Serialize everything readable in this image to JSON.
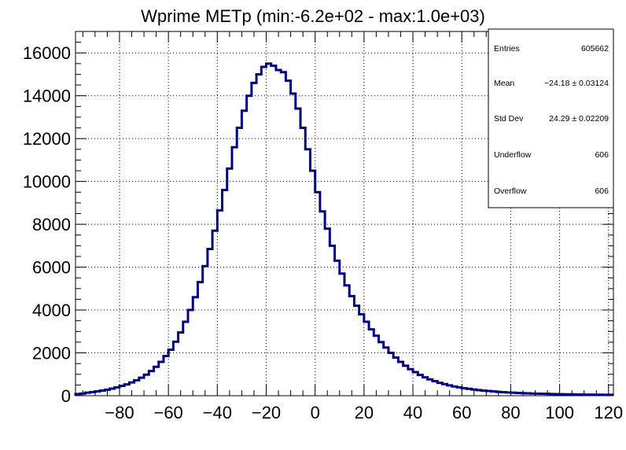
{
  "chart_data": {
    "type": "histogram-step",
    "title": "Wprime METp (min:-6.2e+02 - max:1.0e+03)",
    "xlabel": "",
    "ylabel": "",
    "xlim": [
      -98,
      122
    ],
    "ylim": [
      0,
      17000
    ],
    "x_ticks": [
      -80,
      -60,
      -40,
      -20,
      0,
      20,
      40,
      60,
      80,
      100,
      120
    ],
    "y_ticks": [
      0,
      2000,
      4000,
      6000,
      8000,
      10000,
      12000,
      14000,
      16000
    ],
    "grid": true,
    "line_color": "#00007f",
    "bin_width": 2,
    "x_start": -98,
    "values": [
      80,
      100,
      140,
      170,
      200,
      240,
      280,
      330,
      390,
      460,
      530,
      620,
      720,
      840,
      980,
      1150,
      1350,
      1580,
      1850,
      2150,
      2520,
      2950,
      3450,
      4000,
      4600,
      5300,
      6050,
      6850,
      7700,
      8650,
      9600,
      10600,
      11600,
      12500,
      13300,
      14000,
      14600,
      15000,
      15350,
      15500,
      15400,
      15200,
      15100,
      14700,
      14100,
      13400,
      12500,
      11500,
      10500,
      9500,
      8600,
      7800,
      7000,
      6300,
      5700,
      5150,
      4650,
      4200,
      3800,
      3450,
      3100,
      2800,
      2500,
      2250,
      2000,
      1780,
      1580,
      1400,
      1240,
      1100,
      970,
      860,
      760,
      680,
      600,
      540,
      480,
      430,
      390,
      350,
      320,
      290,
      260,
      240,
      220,
      200,
      180,
      165,
      150,
      140,
      130,
      120,
      110,
      100,
      95,
      90,
      85,
      80,
      75,
      70,
      65,
      62,
      58,
      55,
      52,
      50,
      47,
      45,
      43,
      40
    ]
  },
  "stats_box": {
    "entries_label": "Entries",
    "entries_value": "605662",
    "mean_label": "Mean",
    "mean_value": "−24.18 ± 0.03124",
    "stddev_label": "Std Dev",
    "stddev_value": "24.29 ± 0.02209",
    "underflow_label": "Underflow",
    "underflow_value": "606",
    "overflow_label": "Overflow",
    "overflow_value": "606"
  }
}
